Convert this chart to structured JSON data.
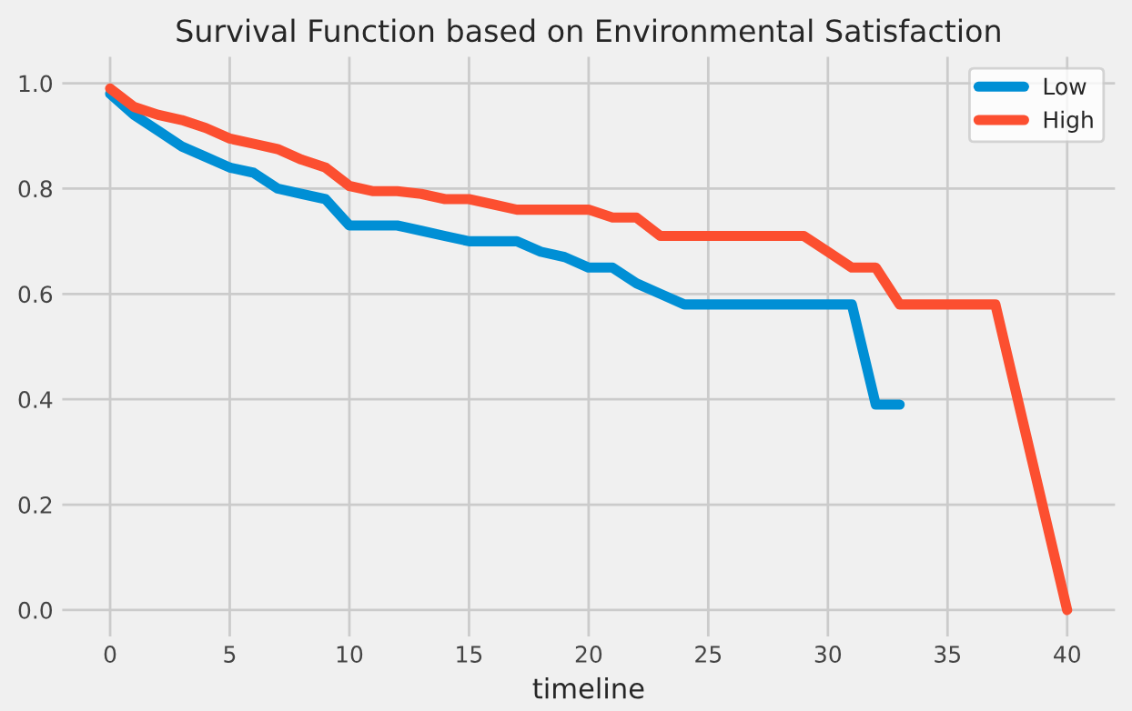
{
  "chart_data": {
    "type": "line",
    "title": "Survival Function based on Environmental Satisfaction",
    "xlabel": "timeline",
    "series": [
      {
        "name": "Low",
        "color": "#008fd5",
        "x": [
          0,
          1,
          2,
          3,
          4,
          5,
          6,
          7,
          8,
          9,
          10,
          11,
          12,
          13,
          14,
          15,
          16,
          17,
          18,
          19,
          20,
          21,
          22,
          23,
          24,
          25,
          26,
          27,
          28,
          29,
          30,
          31,
          32,
          33
        ],
        "values": [
          0.98,
          0.94,
          0.91,
          0.88,
          0.86,
          0.84,
          0.83,
          0.8,
          0.79,
          0.78,
          0.73,
          0.73,
          0.73,
          0.72,
          0.71,
          0.7,
          0.7,
          0.7,
          0.68,
          0.67,
          0.65,
          0.65,
          0.62,
          0.6,
          0.58,
          0.58,
          0.58,
          0.58,
          0.58,
          0.58,
          0.58,
          0.58,
          0.39,
          0.39
        ]
      },
      {
        "name": "High",
        "color": "#fc4f30",
        "x": [
          0,
          1,
          2,
          3,
          4,
          5,
          6,
          7,
          8,
          9,
          10,
          11,
          12,
          13,
          14,
          15,
          16,
          17,
          18,
          19,
          20,
          21,
          22,
          23,
          24,
          25,
          26,
          27,
          28,
          29,
          30,
          31,
          32,
          33,
          34,
          35,
          36,
          37,
          40
        ],
        "values": [
          0.99,
          0.955,
          0.94,
          0.93,
          0.915,
          0.895,
          0.885,
          0.875,
          0.855,
          0.84,
          0.805,
          0.795,
          0.795,
          0.79,
          0.78,
          0.78,
          0.77,
          0.76,
          0.76,
          0.76,
          0.76,
          0.745,
          0.745,
          0.71,
          0.71,
          0.71,
          0.71,
          0.71,
          0.71,
          0.71,
          0.68,
          0.65,
          0.65,
          0.58,
          0.58,
          0.58,
          0.58,
          0.58,
          0.0
        ]
      }
    ],
    "xlim": [
      -2,
      42
    ],
    "ylim": [
      -0.05,
      1.05
    ],
    "xticks": [
      0,
      5,
      10,
      15,
      20,
      25,
      30,
      35,
      40
    ],
    "yticks": [
      {
        "value": 0,
        "label": "0.0"
      },
      {
        "value": 0.2,
        "label": "0.2"
      },
      {
        "value": 0.4,
        "label": "0.4"
      },
      {
        "value": 0.6,
        "label": "0.6"
      },
      {
        "value": 0.8,
        "label": "0.8"
      },
      {
        "value": 1,
        "label": "1.0"
      }
    ],
    "grid": true,
    "legend": "top right",
    "line_style": "solid",
    "marker": "none"
  }
}
